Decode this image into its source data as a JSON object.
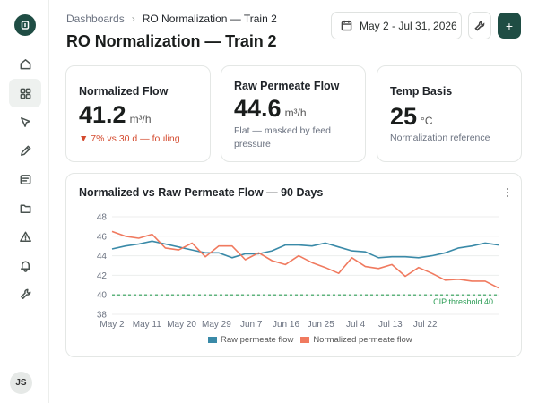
{
  "sidebar": {
    "items": [
      {
        "icon": "home-icon",
        "active": false
      },
      {
        "icon": "dashboard-grid-icon",
        "active": true
      },
      {
        "icon": "cursor-icon",
        "active": false
      },
      {
        "icon": "pencil-icon",
        "active": false
      },
      {
        "icon": "report-icon",
        "active": false
      },
      {
        "icon": "folder-icon",
        "active": false
      },
      {
        "icon": "alert-triangle-icon",
        "active": false
      },
      {
        "icon": "bell-icon",
        "active": false
      },
      {
        "icon": "wrench-icon",
        "active": false
      }
    ],
    "avatar_initials": "JS"
  },
  "header": {
    "breadcrumb_root": "Dashboards",
    "breadcrumb_current": "RO Normalization — Train 2",
    "title": "RO Normalization — Train 2",
    "date_range": "May 2 - Jul 31, 2026",
    "add_label": "+"
  },
  "stats": [
    {
      "label": "Normalized Flow",
      "value": "41.2",
      "unit": "m³/h",
      "note": "▼ 7% vs 30 d — fouling"
    },
    {
      "label": "Raw Permeate Flow",
      "value": "44.6",
      "unit": "m³/h",
      "note": "Flat — masked by feed pressure"
    },
    {
      "label": "Temp Basis",
      "value": "25",
      "unit": "°C",
      "note": "Normalization reference"
    }
  ],
  "colors": {
    "brand": "#1f4d44",
    "raw": "#3a8aa8",
    "normalized": "#f07a5f",
    "threshold": "#2e9e57",
    "negative": "#d44a2e"
  },
  "chart_data": {
    "type": "line",
    "title": "Normalized vs Raw Permeate Flow — 90 Days",
    "x_tick_labels": [
      "May 2",
      "May 11",
      "May 20",
      "May 29",
      "Jun 7",
      "Jun 16",
      "Jun 25",
      "Jul 4",
      "Jul 13",
      "Jul 22"
    ],
    "ylim": [
      38,
      48
    ],
    "y_ticks": [
      38,
      40,
      42,
      44,
      46,
      48
    ],
    "grid": true,
    "legend_position": "bottom",
    "series": [
      {
        "name": "Raw permeate flow",
        "color": "#3a8aa8",
        "values": [
          44.7,
          45.0,
          45.2,
          45.5,
          45.2,
          44.9,
          44.6,
          44.3,
          44.3,
          43.8,
          44.2,
          44.2,
          44.5,
          45.1,
          45.1,
          45.0,
          45.3,
          44.9,
          44.5,
          44.4,
          43.8,
          43.9,
          43.9,
          43.8,
          44.0,
          44.3,
          44.8,
          45.0,
          45.3,
          45.1
        ]
      },
      {
        "name": "Normalized permeate flow",
        "color": "#f07a5f",
        "values": [
          46.5,
          46.0,
          45.8,
          46.2,
          44.8,
          44.6,
          45.3,
          43.9,
          45.0,
          45.0,
          43.6,
          44.3,
          43.5,
          43.1,
          44.0,
          43.3,
          42.8,
          42.2,
          43.8,
          42.9,
          42.7,
          43.1,
          41.9,
          42.8,
          42.2,
          41.5,
          41.6,
          41.4,
          41.4,
          40.7
        ]
      },
      {
        "name": "CIP threshold 40",
        "color": "#2e9e57",
        "style": "dashed",
        "constant": 40
      }
    ],
    "annotations": [
      {
        "text": "CIP threshold 40",
        "near": "threshold line, right end"
      }
    ]
  }
}
